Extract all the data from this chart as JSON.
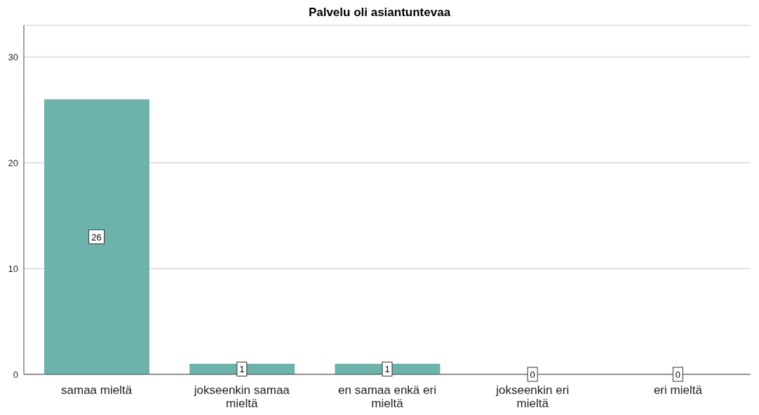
{
  "chart_data": {
    "type": "bar",
    "title": "Palvelu oli asiantuntevaa",
    "categories": [
      "samaa mieltä",
      "jokseenkin samaa mieltä",
      "en samaa enkä eri mieltä",
      "jokseenkin eri mieltä",
      "eri mieltä"
    ],
    "values": [
      26,
      1,
      1,
      0,
      0
    ],
    "color": "#6db3ac",
    "ylim": [
      0,
      33
    ],
    "yticks": [
      0,
      10,
      20,
      30
    ],
    "grid": "y",
    "data_labels": true
  }
}
